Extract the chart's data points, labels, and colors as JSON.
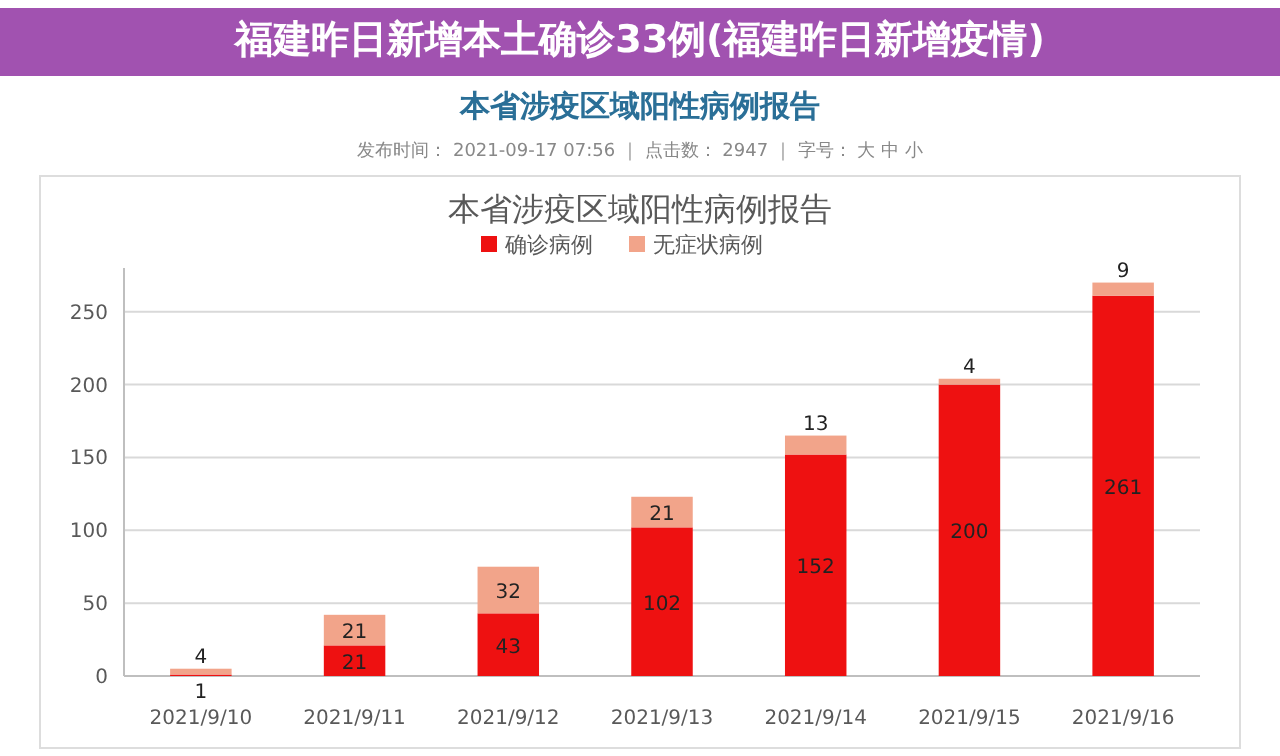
{
  "chart_data": {
    "type": "bar",
    "title": "本省涉疫区域阳性病例报告",
    "annotations": [
      "福建昨日新增本土确诊33例(福建昨日新增疫情)",
      "本省涉疫区域阳性病例报告",
      "发布时间： 2021-09-17 07:56 ｜ 点击数： 2947 ｜ 字号： 大 中 小"
    ],
    "categories": [
      "2021/9/10",
      "2021/9/11",
      "2021/9/12",
      "2021/9/13",
      "2021/9/14",
      "2021/9/15",
      "2021/9/16"
    ],
    "series": [
      {
        "name": "确诊病例",
        "color": "#ee1111",
        "values": [
          1,
          21,
          43,
          102,
          152,
          200,
          261
        ]
      },
      {
        "name": "无症状病例",
        "color": "#f2a48a",
        "values": [
          4,
          21,
          32,
          21,
          13,
          4,
          9
        ]
      }
    ],
    "stacked": true,
    "ylim": [
      0,
      280
    ],
    "yticks": [
      0,
      50,
      100,
      150,
      200,
      250
    ],
    "grid": "y",
    "legend": "top",
    "data_labels": true
  }
}
